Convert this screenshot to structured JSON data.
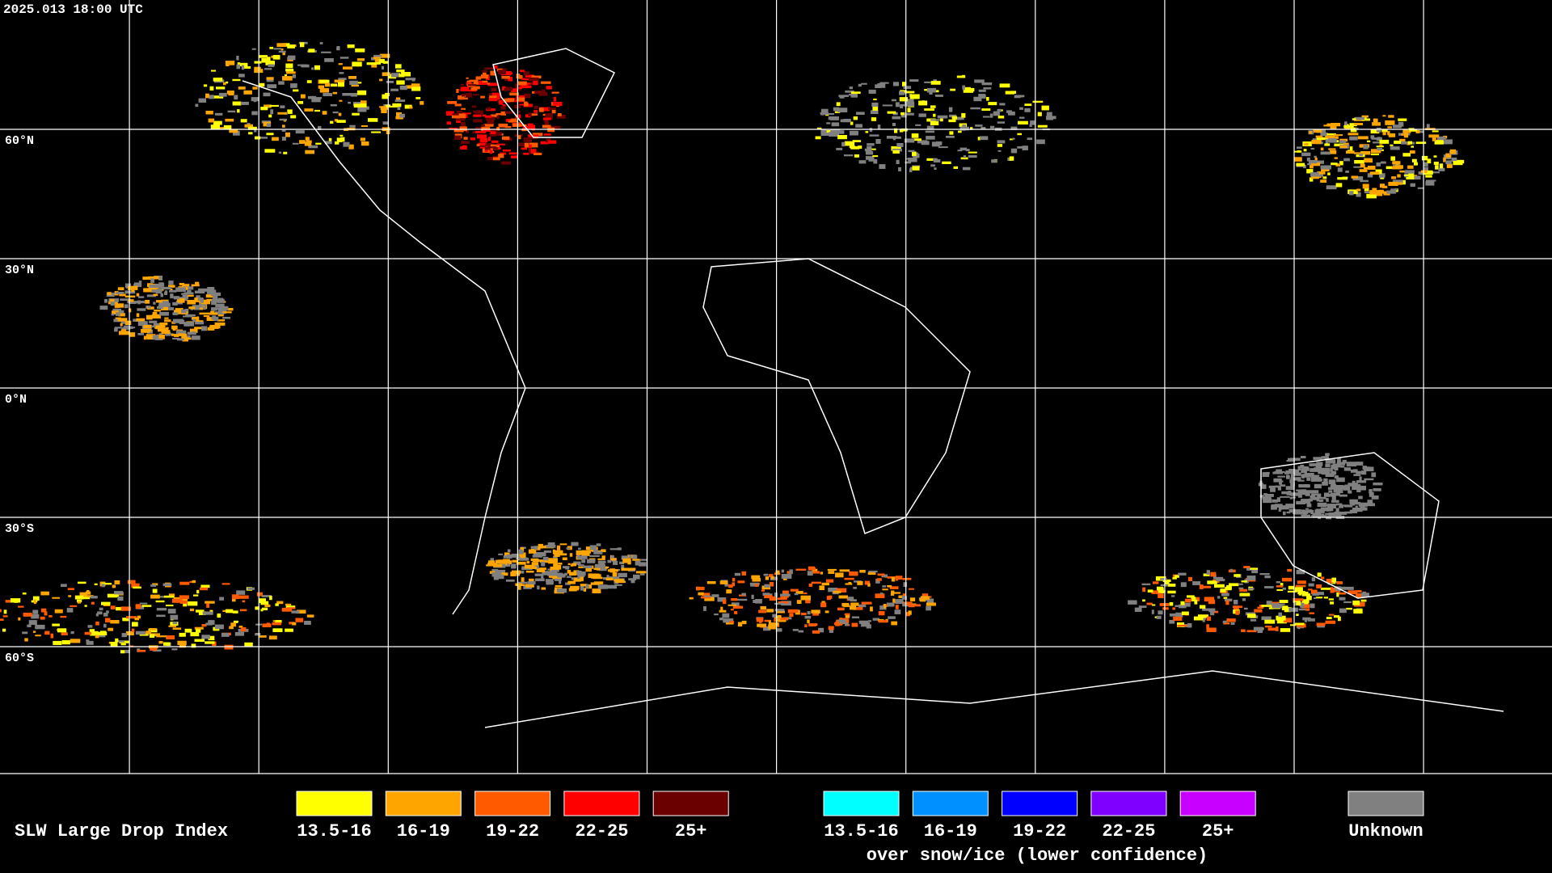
{
  "header": {
    "timestamp": "2025.013 18:00 UTC"
  },
  "map": {
    "latitude_labels": [
      "60°N",
      "30°N",
      "0°N",
      "30°S",
      "60°S"
    ]
  },
  "legend": {
    "title": "SLW Large Drop Index",
    "main": [
      {
        "label": "13.5-16",
        "color": "#ffff00"
      },
      {
        "label": "16-19",
        "color": "#ffa500"
      },
      {
        "label": "19-22",
        "color": "#ff5a00"
      },
      {
        "label": "22-25",
        "color": "#ff0000"
      },
      {
        "label": "25+",
        "color": "#6b0000"
      }
    ],
    "snow_ice": [
      {
        "label": "13.5-16",
        "color": "#00ffff"
      },
      {
        "label": "16-19",
        "color": "#0090ff"
      },
      {
        "label": "19-22",
        "color": "#0000ff"
      },
      {
        "label": "22-25",
        "color": "#7f00ff"
      },
      {
        "label": "25+",
        "color": "#c800ff"
      }
    ],
    "snow_ice_caption": "over snow/ice (lower confidence)",
    "unknown": {
      "label": "Unknown",
      "color": "#808080"
    }
  }
}
